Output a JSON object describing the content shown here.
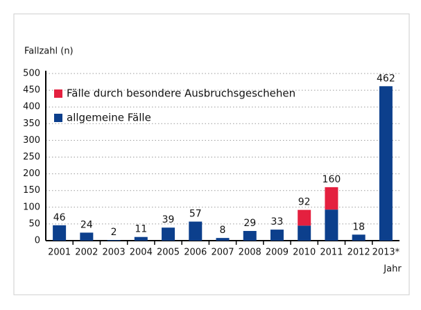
{
  "chart_data": {
    "type": "stacked-bar",
    "y_label": "Fallzahl (n)",
    "x_label": "Jahr",
    "categories": [
      "2001",
      "2002",
      "2003",
      "2004",
      "2005",
      "2006",
      "2007",
      "2008",
      "2009",
      "2010",
      "2011",
      "2012",
      "2013*"
    ],
    "series": [
      {
        "name": "allgemeine Fälle",
        "color": "#0c3f8c",
        "values": [
          46,
          24,
          2,
          11,
          39,
          57,
          8,
          29,
          33,
          45,
          93,
          18,
          462
        ]
      },
      {
        "name": "Fälle durch besondere Ausbruchsgeschehen",
        "color": "#e4203f",
        "values": [
          0,
          0,
          0,
          0,
          0,
          0,
          0,
          0,
          0,
          47,
          67,
          0,
          0
        ]
      }
    ],
    "totals": [
      46,
      24,
      2,
      11,
      39,
      57,
      8,
      29,
      33,
      92,
      160,
      18,
      462
    ],
    "ylim": [
      0,
      500
    ],
    "yticks": [
      0,
      50,
      100,
      150,
      200,
      250,
      300,
      350,
      400,
      450,
      500
    ],
    "grid": true
  }
}
